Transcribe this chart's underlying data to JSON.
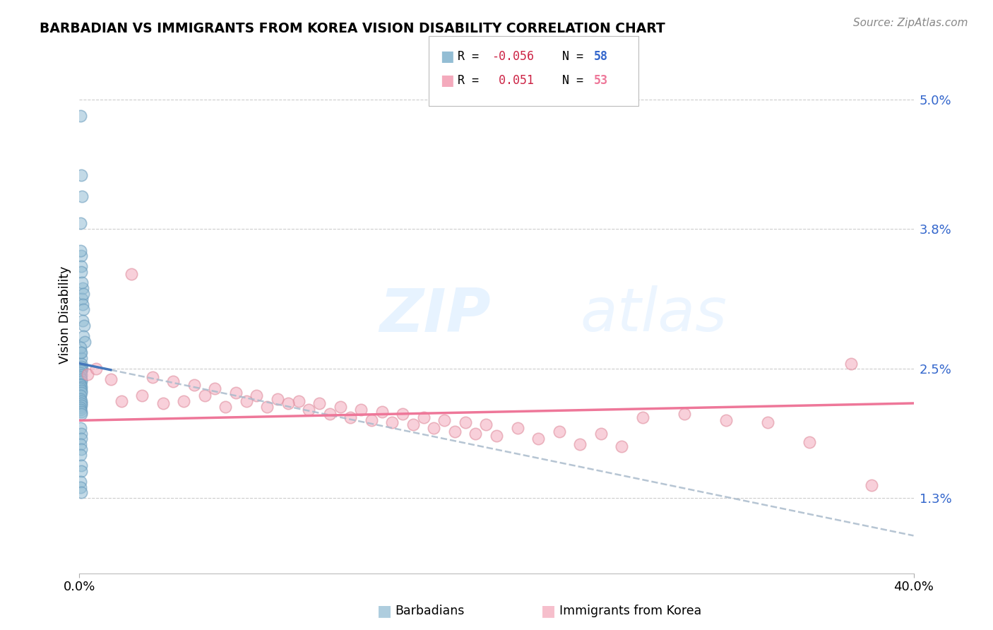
{
  "title": "BARBADIAN VS IMMIGRANTS FROM KOREA VISION DISABILITY CORRELATION CHART",
  "source": "Source: ZipAtlas.com",
  "ylabel": "Vision Disability",
  "y_ticks": [
    1.3,
    2.5,
    3.8,
    5.0
  ],
  "y_tick_labels": [
    "1.3%",
    "2.5%",
    "3.8%",
    "5.0%"
  ],
  "x_min": 0.0,
  "x_max": 40.0,
  "y_min": 0.6,
  "y_max": 5.4,
  "barbadian_R": -0.056,
  "barbadian_N": 58,
  "korea_R": 0.051,
  "korea_N": 53,
  "blue_color": "#93BDD4",
  "blue_edge_color": "#6699BB",
  "pink_color": "#F4AABC",
  "pink_edge_color": "#DD8899",
  "blue_line_color": "#4477BB",
  "pink_line_color": "#EE7799",
  "dash_color": "#AABBCC",
  "barbadian_x": [
    0.05,
    0.08,
    0.12,
    0.04,
    0.1,
    0.06,
    0.09,
    0.15,
    0.07,
    0.11,
    0.13,
    0.18,
    0.14,
    0.2,
    0.16,
    0.22,
    0.19,
    0.25,
    0.05,
    0.08,
    0.1,
    0.12,
    0.06,
    0.09,
    0.05,
    0.07,
    0.1,
    0.06,
    0.08,
    0.05,
    0.07,
    0.09,
    0.04,
    0.06,
    0.08,
    0.05,
    0.07,
    0.09,
    0.06,
    0.05,
    0.08,
    0.1,
    0.07,
    0.05,
    0.06,
    0.08,
    0.1,
    0.05,
    0.07,
    0.09,
    0.06,
    0.08,
    0.05,
    0.07,
    0.09,
    0.05,
    0.06,
    0.08
  ],
  "barbadian_y": [
    4.85,
    4.3,
    4.1,
    3.85,
    3.55,
    3.6,
    3.45,
    3.25,
    3.4,
    3.3,
    3.15,
    3.2,
    3.1,
    3.05,
    2.95,
    2.9,
    2.8,
    2.75,
    2.65,
    2.6,
    2.55,
    2.5,
    2.7,
    2.65,
    2.5,
    2.52,
    2.48,
    2.46,
    2.44,
    2.42,
    2.4,
    2.38,
    2.36,
    2.35,
    2.33,
    2.32,
    2.3,
    2.28,
    2.25,
    2.22,
    2.2,
    2.18,
    2.16,
    2.14,
    2.12,
    2.1,
    2.08,
    1.95,
    1.9,
    1.85,
    1.8,
    1.75,
    1.7,
    1.6,
    1.55,
    1.45,
    1.4,
    1.35
  ],
  "korea_x": [
    0.4,
    0.8,
    1.5,
    2.5,
    3.5,
    4.5,
    5.5,
    6.5,
    7.5,
    8.5,
    9.5,
    10.5,
    11.5,
    12.5,
    13.5,
    14.5,
    15.5,
    16.5,
    17.5,
    18.5,
    19.5,
    21.0,
    23.0,
    25.0,
    27.0,
    29.0,
    31.0,
    33.0,
    35.0,
    37.0,
    2.0,
    3.0,
    4.0,
    5.0,
    6.0,
    7.0,
    8.0,
    9.0,
    10.0,
    11.0,
    12.0,
    13.0,
    14.0,
    15.0,
    16.0,
    17.0,
    18.0,
    19.0,
    20.0,
    22.0,
    24.0,
    26.0,
    38.0
  ],
  "korea_y": [
    2.45,
    2.5,
    2.4,
    3.38,
    2.42,
    2.38,
    2.35,
    2.32,
    2.28,
    2.25,
    2.22,
    2.2,
    2.18,
    2.15,
    2.12,
    2.1,
    2.08,
    2.05,
    2.02,
    2.0,
    1.98,
    1.95,
    1.92,
    1.9,
    2.05,
    2.08,
    2.02,
    2.0,
    1.82,
    2.55,
    2.2,
    2.25,
    2.18,
    2.2,
    2.25,
    2.15,
    2.2,
    2.15,
    2.18,
    2.12,
    2.08,
    2.05,
    2.02,
    2.0,
    1.98,
    1.95,
    1.92,
    1.9,
    1.88,
    1.85,
    1.8,
    1.78,
    1.42
  ],
  "blue_line_x0": 0.0,
  "blue_line_y0": 2.55,
  "blue_line_x1": 40.0,
  "blue_line_y1": 0.95,
  "blue_solid_x1": 1.5,
  "pink_line_x0": 0.0,
  "pink_line_y0": 2.02,
  "pink_line_x1": 40.0,
  "pink_line_y1": 2.18,
  "dash_x0": 0.0,
  "dash_y0": 2.55,
  "dash_x1": 40.0,
  "dash_y1": 0.95,
  "watermark_top": "ZIP",
  "watermark_bot": "atlas",
  "legend_R_color": "#CC2244",
  "legend_N_color": "#3366CC",
  "legend_NK_color": "#EE7799"
}
